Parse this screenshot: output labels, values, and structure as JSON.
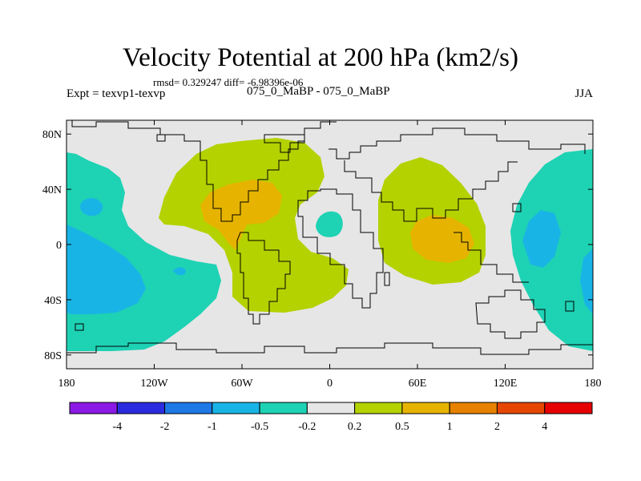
{
  "title": "Velocity Potential at 200 hPa (km2/s)",
  "stats": "rmsd= 0.329247 diff= -6.98396e-06",
  "experiment": "Expt = texvp1-texvp",
  "comparison": "075_0_MaBP - 075_0_MaBP",
  "season": "JJA",
  "map": {
    "lon_range": [
      -180,
      180
    ],
    "lat_range": [
      -90,
      90
    ],
    "lat_ticks": [
      {
        "value": 80,
        "label": "80N"
      },
      {
        "value": 40,
        "label": "40N"
      },
      {
        "value": 0,
        "label": "0"
      },
      {
        "value": -40,
        "label": "40S"
      },
      {
        "value": -80,
        "label": "80S"
      }
    ],
    "lon_ticks": [
      {
        "value": -180,
        "label": "180"
      },
      {
        "value": -120,
        "label": "120W"
      },
      {
        "value": -60,
        "label": "60W"
      },
      {
        "value": 0,
        "label": "0"
      },
      {
        "value": 60,
        "label": "60E"
      },
      {
        "value": 120,
        "label": "120E"
      },
      {
        "value": 180,
        "label": "180"
      }
    ],
    "background_color": "#e6e6e6"
  },
  "colorbar": {
    "colors": [
      "#8b1ae6",
      "#2b2be0",
      "#1e78e6",
      "#19b4e6",
      "#1ed2b4",
      "#e6e6e6",
      "#b4d200",
      "#e6b400",
      "#e68200",
      "#e64600",
      "#e60000"
    ],
    "labels": [
      "-4",
      "-2",
      "-1",
      "-0.5",
      "-0.2",
      "0.2",
      "0.5",
      "1",
      "2",
      "4"
    ]
  },
  "regions": [
    {
      "name": "west-pacific-negative",
      "level": "-0.2 to -0.5",
      "color": "#1ed2b4"
    },
    {
      "name": "west-pacific-negative-core",
      "level": "-0.5 to -1",
      "color": "#19b4e6"
    },
    {
      "name": "atlantic-positive",
      "level": "0.2 to 0.5",
      "color": "#b4d200"
    },
    {
      "name": "atlantic-positive-core",
      "level": "0.5 to 1",
      "color": "#e6b400"
    },
    {
      "name": "africa-small-negative",
      "level": "-0.2 to -0.5",
      "color": "#1ed2b4"
    },
    {
      "name": "asia-positive",
      "level": "0.2 to 0.5",
      "color": "#b4d200"
    },
    {
      "name": "asia-positive-core",
      "level": "0.5 to 1",
      "color": "#e6b400"
    },
    {
      "name": "east-pacific-negative",
      "level": "-0.2 to -0.5",
      "color": "#1ed2b4"
    },
    {
      "name": "east-pacific-negative-core",
      "level": "-0.5 to -1",
      "color": "#19b4e6"
    }
  ]
}
